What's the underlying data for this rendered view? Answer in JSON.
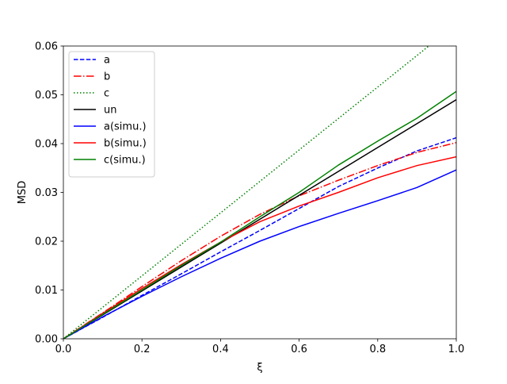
{
  "chart_data": {
    "type": "line",
    "title": "",
    "xlabel": "ξ",
    "ylabel": "MSD",
    "xlim": [
      0.0,
      1.0
    ],
    "ylim": [
      0.0,
      0.06
    ],
    "xticks": [
      "0.0",
      "0.2",
      "0.4",
      "0.6",
      "0.8",
      "1.0"
    ],
    "yticks": [
      "0.00",
      "0.01",
      "0.02",
      "0.03",
      "0.04",
      "0.05",
      "0.06"
    ],
    "grid": false,
    "legend_position": "top-left",
    "series": [
      {
        "name": "a",
        "color": "#0000ff",
        "style": "dashed",
        "x": [
          0,
          0.1,
          0.2,
          0.3,
          0.4,
          0.5,
          0.6,
          0.7,
          0.8,
          0.9,
          1.0
        ],
        "y": [
          0,
          0.0044,
          0.0089,
          0.0133,
          0.0178,
          0.0222,
          0.0267,
          0.0312,
          0.035,
          0.0385,
          0.0412
        ]
      },
      {
        "name": "b",
        "color": "#ff0000",
        "style": "dashdot",
        "x": [
          0,
          0.1,
          0.2,
          0.3,
          0.4,
          0.5,
          0.6,
          0.7,
          0.8,
          0.9,
          1.0
        ],
        "y": [
          0,
          0.0053,
          0.0107,
          0.016,
          0.021,
          0.0255,
          0.0293,
          0.0325,
          0.0355,
          0.0382,
          0.0402
        ]
      },
      {
        "name": "c",
        "color": "#008000",
        "style": "dotted",
        "x": [
          0,
          0.2,
          0.4,
          0.6,
          0.8,
          0.93
        ],
        "y": [
          0,
          0.0129,
          0.0258,
          0.0387,
          0.0516,
          0.06
        ]
      },
      {
        "name": "un",
        "color": "#000000",
        "style": "solid",
        "x": [
          0,
          0.2,
          0.4,
          0.6,
          0.8,
          1.0
        ],
        "y": [
          0,
          0.0098,
          0.0196,
          0.0294,
          0.0392,
          0.049
        ]
      },
      {
        "name": "a(simu.)",
        "color": "#0000ff",
        "style": "solid",
        "x": [
          0,
          0.1,
          0.2,
          0.3,
          0.4,
          0.5,
          0.6,
          0.7,
          0.8,
          0.9,
          1.0
        ],
        "y": [
          0,
          0.0045,
          0.0087,
          0.0127,
          0.0165,
          0.02,
          0.023,
          0.0257,
          0.0283,
          0.031,
          0.0346
        ]
      },
      {
        "name": "b(simu.)",
        "color": "#ff0000",
        "style": "solid",
        "x": [
          0,
          0.1,
          0.2,
          0.3,
          0.4,
          0.5,
          0.6,
          0.7,
          0.8,
          0.9,
          1.0
        ],
        "y": [
          0,
          0.0052,
          0.0103,
          0.0152,
          0.0198,
          0.024,
          0.0272,
          0.03,
          0.033,
          0.0355,
          0.0373
        ]
      },
      {
        "name": "c(simu.)",
        "color": "#008000",
        "style": "solid",
        "x": [
          0,
          0.1,
          0.2,
          0.3,
          0.4,
          0.5,
          0.6,
          0.7,
          0.8,
          0.9,
          1.0
        ],
        "y": [
          0,
          0.005,
          0.01,
          0.015,
          0.0198,
          0.025,
          0.03,
          0.0356,
          0.0405,
          0.0452,
          0.0507
        ]
      }
    ]
  }
}
